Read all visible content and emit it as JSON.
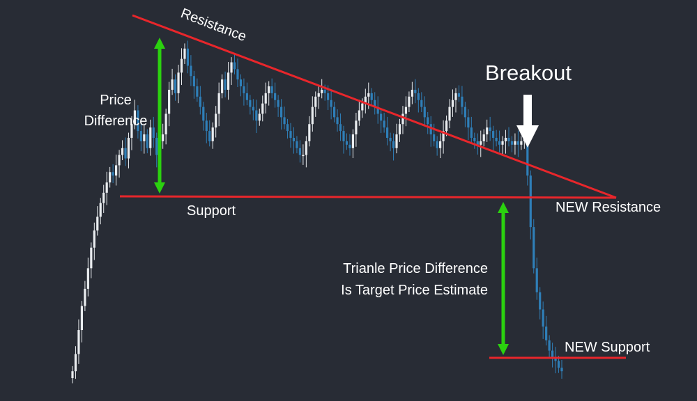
{
  "colors": {
    "background": "#282c35",
    "bull_candle": "#e9ecef",
    "bear_candle": "#2f7fb8",
    "trend_line": "#e8262b",
    "measure_arrow": "#2bd10f",
    "text": "#ffffff"
  },
  "labels": {
    "resistance": "Resistance",
    "support": "Support",
    "price_difference_1": "Price",
    "price_difference_2": "Difference",
    "breakout": "Breakout",
    "new_resistance": "NEW Resistance",
    "new_support": "NEW Support",
    "target_line_1": "Trianle Price Difference",
    "target_line_2": "Is Target Price Estimate"
  },
  "chart_data": {
    "type": "candlestick",
    "title": "",
    "xlabel": "",
    "ylabel": "",
    "pattern": "descending triangle breakdown",
    "x_range": [
      0,
      100
    ],
    "y_range": [
      0,
      100
    ],
    "grid": false,
    "legend": "none",
    "candle_close_series": [
      3,
      8,
      15,
      22,
      27,
      33,
      39,
      44,
      48,
      52,
      55,
      58,
      61,
      60,
      63,
      66,
      68,
      65,
      71,
      75,
      79,
      73,
      70,
      72,
      68,
      74,
      71,
      66,
      70,
      72,
      78,
      85,
      88,
      84,
      90,
      94,
      97,
      92,
      89,
      86,
      83,
      80,
      76,
      73,
      70,
      74,
      78,
      84,
      88,
      85,
      90,
      93,
      91,
      88,
      86,
      84,
      82,
      80,
      79,
      76,
      78,
      81,
      84,
      86,
      84,
      82,
      80,
      77,
      75,
      73,
      71,
      70,
      68,
      66,
      66,
      70,
      75,
      80,
      83,
      84,
      85,
      84,
      82,
      80,
      77,
      75,
      73,
      70,
      69,
      68,
      72,
      76,
      79,
      81,
      83,
      84,
      82,
      80,
      78,
      76,
      74,
      71,
      70,
      68,
      72,
      75,
      78,
      80,
      83,
      85,
      84,
      82,
      80,
      77,
      75,
      72,
      70,
      68,
      70,
      73,
      76,
      80,
      82,
      84,
      83,
      80,
      77,
      74,
      71,
      70,
      69,
      70,
      72,
      74,
      73,
      71,
      70,
      69,
      70,
      71,
      70,
      69,
      70,
      69,
      70,
      72,
      60,
      45,
      33,
      26,
      21,
      16,
      12,
      9,
      7,
      6,
      4,
      3
    ],
    "resistance_line": {
      "start": [
        0,
        100
      ],
      "end": [
        100,
        63
      ]
    },
    "support_line": {
      "level": 63
    },
    "new_support_line": {
      "level": 10
    }
  }
}
